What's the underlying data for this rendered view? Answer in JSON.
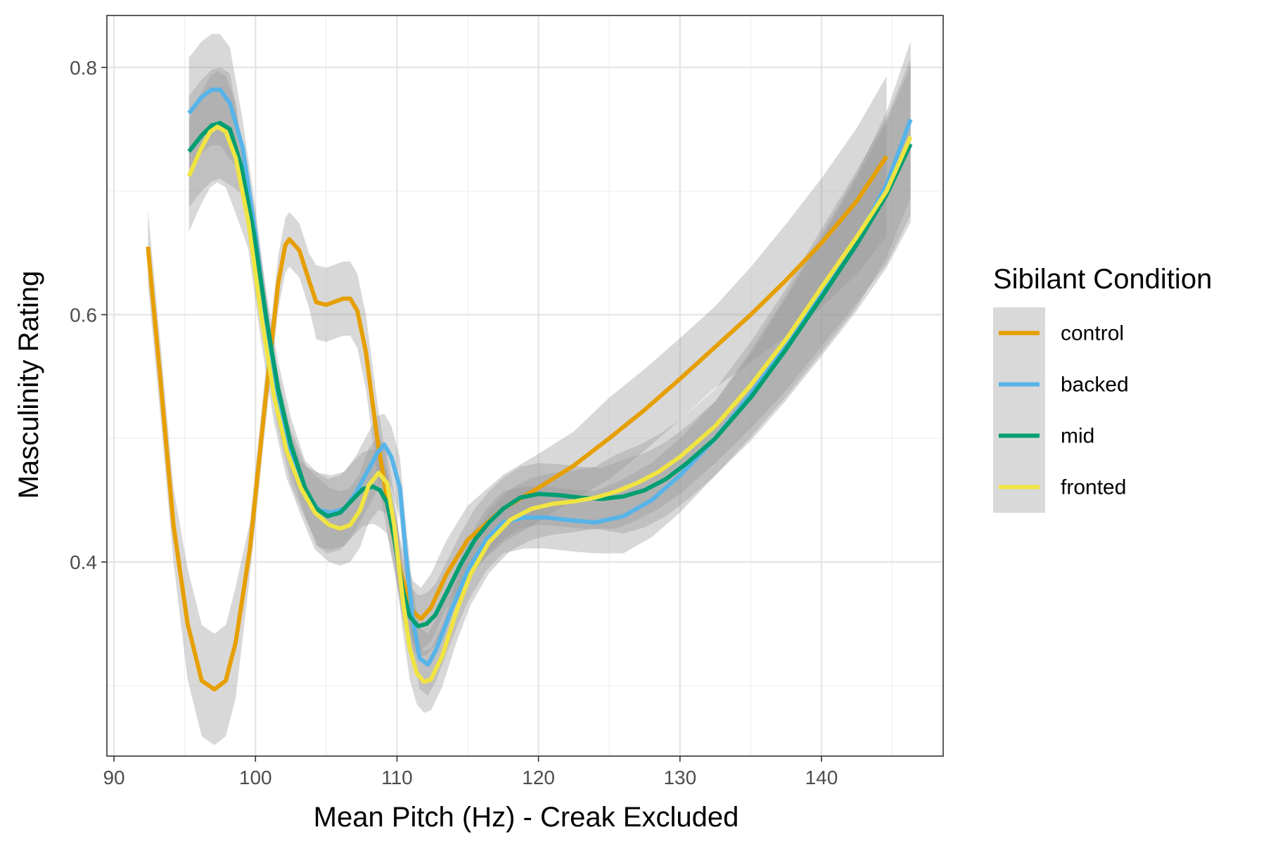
{
  "chart_data": {
    "type": "line",
    "title": "",
    "xlabel": "Mean Pitch (Hz) - Creak Excluded",
    "ylabel": "Masculinity Rating",
    "xlim": [
      89.5,
      148.6
    ],
    "ylim": [
      0.243,
      0.842
    ],
    "x_ticks": [
      90,
      100,
      110,
      120,
      130,
      140
    ],
    "x_tick_labels": [
      "90",
      "100",
      "110",
      "120",
      "130",
      "140"
    ],
    "y_ticks": [
      0.4,
      0.6,
      0.8
    ],
    "y_tick_labels": [
      "0.4",
      "0.6",
      "0.8"
    ],
    "y_minor_ticks": [
      0.3,
      0.5,
      0.7
    ],
    "x_minor_ticks": [
      95,
      105,
      115,
      125,
      135,
      145
    ],
    "grid": true,
    "legend": {
      "title": "Sibilant Condition",
      "position": "right",
      "entries": [
        "control",
        "backed",
        "mid",
        "fronted"
      ]
    },
    "confidence_band_color": "#999999",
    "series": [
      {
        "name": "control",
        "color": "#E69F00",
        "points": [
          [
            92.4,
            0.655
          ],
          [
            93.3,
            0.545
          ],
          [
            94.2,
            0.43
          ],
          [
            95.2,
            0.35
          ],
          [
            96.2,
            0.304
          ],
          [
            97.1,
            0.297
          ],
          [
            97.9,
            0.304
          ],
          [
            98.6,
            0.335
          ],
          [
            99.6,
            0.41
          ],
          [
            100.6,
            0.52
          ],
          [
            101.6,
            0.625
          ],
          [
            102.1,
            0.656
          ],
          [
            102.4,
            0.661
          ],
          [
            103.1,
            0.652
          ],
          [
            103.8,
            0.627
          ],
          [
            104.3,
            0.61
          ],
          [
            105,
            0.608
          ],
          [
            106.2,
            0.613
          ],
          [
            106.7,
            0.613
          ],
          [
            107.2,
            0.603
          ],
          [
            107.8,
            0.57
          ],
          [
            108.6,
            0.5
          ],
          [
            109.6,
            0.43
          ],
          [
            110.3,
            0.39
          ],
          [
            111.1,
            0.36
          ],
          [
            111.7,
            0.354
          ],
          [
            112.4,
            0.363
          ],
          [
            113.5,
            0.39
          ],
          [
            115,
            0.418
          ],
          [
            117.5,
            0.443
          ],
          [
            120,
            0.46
          ],
          [
            122.5,
            0.478
          ],
          [
            125,
            0.5
          ],
          [
            127.5,
            0.523
          ],
          [
            130,
            0.548
          ],
          [
            132.5,
            0.574
          ],
          [
            135,
            0.6
          ],
          [
            137.5,
            0.628
          ],
          [
            140,
            0.658
          ],
          [
            142.5,
            0.692
          ],
          [
            144.6,
            0.728
          ]
        ]
      },
      {
        "name": "backed",
        "color": "#56B4E9",
        "points": [
          [
            95.3,
            0.763
          ],
          [
            96.2,
            0.776
          ],
          [
            96.9,
            0.782
          ],
          [
            97.5,
            0.782
          ],
          [
            98.2,
            0.771
          ],
          [
            99.1,
            0.735
          ],
          [
            100,
            0.665
          ],
          [
            100.8,
            0.59
          ],
          [
            101.5,
            0.535
          ],
          [
            102.5,
            0.485
          ],
          [
            103.6,
            0.455
          ],
          [
            104.5,
            0.442
          ],
          [
            105.3,
            0.44
          ],
          [
            106.3,
            0.443
          ],
          [
            107.1,
            0.456
          ],
          [
            107.9,
            0.473
          ],
          [
            108.6,
            0.488
          ],
          [
            109.1,
            0.495
          ],
          [
            109.6,
            0.485
          ],
          [
            110.2,
            0.46
          ],
          [
            110.6,
            0.41
          ],
          [
            111.1,
            0.355
          ],
          [
            111.6,
            0.322
          ],
          [
            112.2,
            0.317
          ],
          [
            112.8,
            0.33
          ],
          [
            113.8,
            0.36
          ],
          [
            115,
            0.393
          ],
          [
            116.3,
            0.418
          ],
          [
            117.5,
            0.432
          ],
          [
            119,
            0.436
          ],
          [
            120.5,
            0.436
          ],
          [
            122,
            0.434
          ],
          [
            124,
            0.432
          ],
          [
            126,
            0.437
          ],
          [
            128,
            0.45
          ],
          [
            130,
            0.47
          ],
          [
            132.5,
            0.5
          ],
          [
            135,
            0.536
          ],
          [
            137.5,
            0.575
          ],
          [
            140,
            0.617
          ],
          [
            142.5,
            0.66
          ],
          [
            144.6,
            0.705
          ],
          [
            146.3,
            0.758
          ]
        ]
      },
      {
        "name": "mid",
        "color": "#009E73",
        "points": [
          [
            95.3,
            0.732
          ],
          [
            96.2,
            0.745
          ],
          [
            96.9,
            0.753
          ],
          [
            97.5,
            0.755
          ],
          [
            98.2,
            0.75
          ],
          [
            99,
            0.72
          ],
          [
            99.9,
            0.665
          ],
          [
            100.8,
            0.595
          ],
          [
            101.6,
            0.54
          ],
          [
            102.5,
            0.495
          ],
          [
            103.5,
            0.46
          ],
          [
            104.3,
            0.443
          ],
          [
            105.1,
            0.437
          ],
          [
            106,
            0.44
          ],
          [
            106.9,
            0.451
          ],
          [
            107.6,
            0.459
          ],
          [
            108.3,
            0.461
          ],
          [
            108.8,
            0.458
          ],
          [
            109.3,
            0.448
          ],
          [
            109.8,
            0.42
          ],
          [
            110.4,
            0.378
          ],
          [
            110.9,
            0.356
          ],
          [
            111.5,
            0.348
          ],
          [
            112.1,
            0.35
          ],
          [
            112.7,
            0.357
          ],
          [
            113.5,
            0.375
          ],
          [
            114.5,
            0.398
          ],
          [
            115.5,
            0.418
          ],
          [
            116.5,
            0.432
          ],
          [
            117.5,
            0.443
          ],
          [
            118.7,
            0.452
          ],
          [
            120,
            0.455
          ],
          [
            121.5,
            0.454
          ],
          [
            123,
            0.452
          ],
          [
            124.5,
            0.451
          ],
          [
            126,
            0.453
          ],
          [
            127.5,
            0.458
          ],
          [
            129,
            0.467
          ],
          [
            130.5,
            0.48
          ],
          [
            132.5,
            0.5
          ],
          [
            135,
            0.533
          ],
          [
            137.5,
            0.572
          ],
          [
            140,
            0.614
          ],
          [
            142.5,
            0.657
          ],
          [
            144.6,
            0.697
          ],
          [
            146.3,
            0.738
          ]
        ]
      },
      {
        "name": "fronted",
        "color": "#F0E442",
        "points": [
          [
            95.3,
            0.712
          ],
          [
            96.1,
            0.733
          ],
          [
            96.8,
            0.748
          ],
          [
            97.3,
            0.752
          ],
          [
            97.9,
            0.748
          ],
          [
            98.6,
            0.727
          ],
          [
            99.5,
            0.675
          ],
          [
            100.4,
            0.6
          ],
          [
            101.3,
            0.535
          ],
          [
            102.2,
            0.49
          ],
          [
            103.2,
            0.46
          ],
          [
            104.2,
            0.44
          ],
          [
            105.2,
            0.43
          ],
          [
            106,
            0.427
          ],
          [
            106.7,
            0.43
          ],
          [
            107.4,
            0.442
          ],
          [
            108,
            0.462
          ],
          [
            108.7,
            0.472
          ],
          [
            109.3,
            0.464
          ],
          [
            109.8,
            0.43
          ],
          [
            110.4,
            0.37
          ],
          [
            110.9,
            0.33
          ],
          [
            111.4,
            0.31
          ],
          [
            111.9,
            0.303
          ],
          [
            112.4,
            0.305
          ],
          [
            113.2,
            0.324
          ],
          [
            114.2,
            0.36
          ],
          [
            115.2,
            0.39
          ],
          [
            116.5,
            0.416
          ],
          [
            118,
            0.434
          ],
          [
            119.5,
            0.443
          ],
          [
            121,
            0.447
          ],
          [
            122.5,
            0.449
          ],
          [
            124,
            0.452
          ],
          [
            125.5,
            0.457
          ],
          [
            127,
            0.464
          ],
          [
            128.5,
            0.473
          ],
          [
            130,
            0.485
          ],
          [
            132.5,
            0.51
          ],
          [
            135,
            0.543
          ],
          [
            137.5,
            0.58
          ],
          [
            140,
            0.622
          ],
          [
            142.5,
            0.663
          ],
          [
            144.6,
            0.7
          ],
          [
            146.3,
            0.744
          ]
        ]
      }
    ]
  }
}
